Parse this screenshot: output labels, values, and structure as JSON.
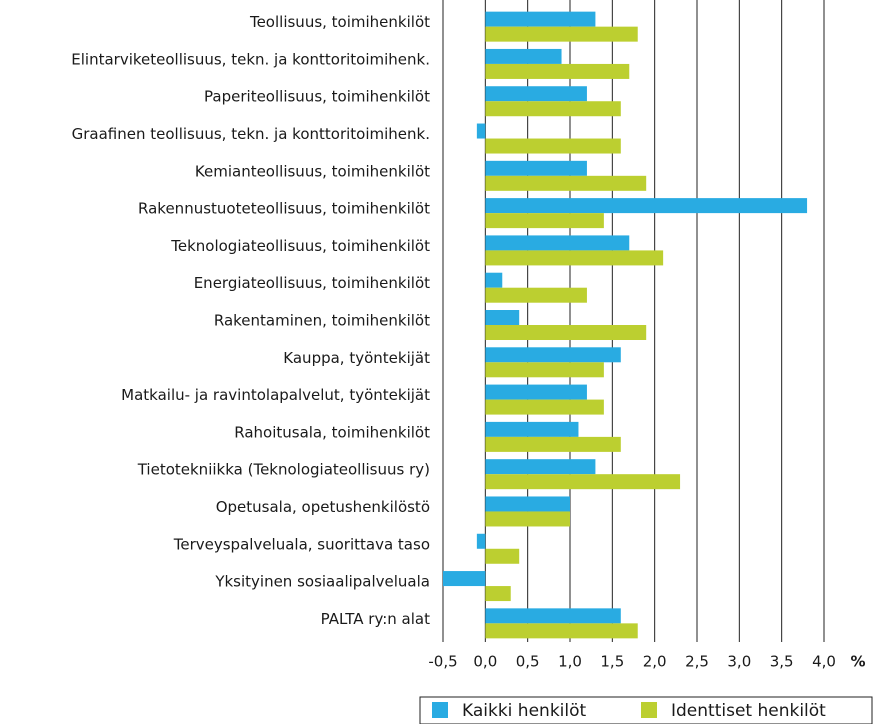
{
  "chart_data": {
    "type": "barh",
    "categories": [
      "Teollisuus, toimihenkilöt",
      "Elintarviketeollisuus, tekn. ja konttoritoimihenk.",
      "Paperiteollisuus, toimihenkilöt",
      "Graafinen teollisuus, tekn. ja konttoritoimihenk.",
      "Kemianteollisuus, toimihenkilöt",
      "Rakennustuoteteollisuus, toimihenkilöt",
      "Teknologiateollisuus, toimihenkilöt",
      "Energiateollisuus, toimihenkilöt",
      "Rakentaminen, toimihenkilöt",
      "Kauppa, työntekijät",
      "Matkailu- ja ravintolapalvelut, työntekijät",
      "Rahoitusala, toimihenkilöt",
      "Tietotekniikka (Teknologiateollisuus ry)",
      "Opetusala, opetushenkilöstö",
      "Terveyspalveluala, suorittava taso",
      "Yksityinen sosiaalipalveluala",
      "PALTA ry:n alat"
    ],
    "series": [
      {
        "name": "Kaikki henkilöt",
        "color": "#29abe2",
        "values": [
          1.3,
          0.9,
          1.2,
          -0.1,
          1.2,
          3.8,
          1.7,
          0.2,
          0.4,
          1.6,
          1.2,
          1.1,
          1.3,
          1.0,
          -0.1,
          -0.5,
          1.6
        ]
      },
      {
        "name": "Identtiset henkilöt",
        "color": "#bccf30",
        "values": [
          1.8,
          1.7,
          1.6,
          1.6,
          1.9,
          1.4,
          2.1,
          1.2,
          1.9,
          1.4,
          1.4,
          1.6,
          2.3,
          1.0,
          0.4,
          0.3,
          1.8
        ]
      }
    ],
    "xlim": [
      -0.5,
      4.0
    ],
    "xticks": [
      {
        "value": -0.5,
        "label": "-0,5"
      },
      {
        "value": 0,
        "label": "0,0"
      },
      {
        "value": 0.5,
        "label": "0,5"
      },
      {
        "value": 1.0,
        "label": "1,0"
      },
      {
        "value": 1.5,
        "label": "1,5"
      },
      {
        "value": 2.0,
        "label": "2,0"
      },
      {
        "value": 2.5,
        "label": "2,5"
      },
      {
        "value": 3.0,
        "label": "3,0"
      },
      {
        "value": 3.5,
        "label": "3,5"
      },
      {
        "value": 4.0,
        "label": "4,0"
      }
    ],
    "x_unit": "%",
    "grid": true,
    "legend": "bottom"
  }
}
